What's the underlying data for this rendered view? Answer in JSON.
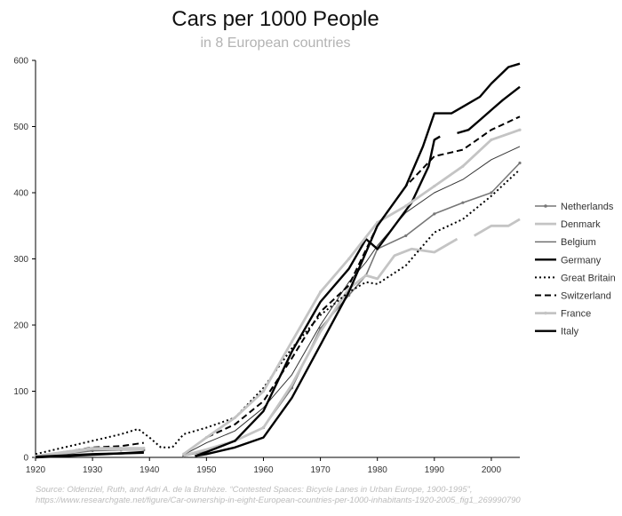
{
  "chart_data": {
    "type": "line",
    "title": "Cars per 1000 People",
    "subtitle": "in 8 European countries",
    "xlabel": "",
    "ylabel": "",
    "xlim": [
      1920,
      2005
    ],
    "ylim": [
      0,
      600
    ],
    "x_ticks": [
      1920,
      1930,
      1940,
      1950,
      1960,
      1970,
      1980,
      1990,
      2000
    ],
    "y_ticks": [
      0,
      100,
      200,
      300,
      400,
      500,
      600
    ],
    "legend_position": "right",
    "source": [
      "Source: Oldenziel, Ruth, and Adri A. de la Bruhèze. “Contested Spaces: Bicycle Lanes in Urban Europe, 1900-1995”,",
      "https://www.researchgate.net/figure/Car-ownership-in-eight-European-countries-per-1000-inhabitants-1920-2005_fig1_269990790"
    ],
    "series": [
      {
        "name": "Netherlands",
        "color": "#777777",
        "width": 1.6,
        "dash": "",
        "marker": true,
        "segments": [
          [
            [
              1920,
              0
            ],
            [
              1925,
              5
            ],
            [
              1930,
              10
            ],
            [
              1935,
              11
            ],
            [
              1939,
              11
            ]
          ],
          [
            [
              1946,
              2
            ],
            [
              1950,
              10
            ],
            [
              1955,
              25
            ],
            [
              1960,
              45
            ],
            [
              1965,
              105
            ],
            [
              1970,
              195
            ],
            [
              1975,
              245
            ],
            [
              1978,
              275
            ],
            [
              1980,
              315
            ],
            [
              1985,
              335
            ],
            [
              1990,
              368
            ],
            [
              1995,
              385
            ],
            [
              2000,
              400
            ],
            [
              2005,
              445
            ]
          ]
        ]
      },
      {
        "name": "Denmark",
        "color": "#c4c4c4",
        "width": 2.8,
        "dash": "",
        "marker": false,
        "segments": [
          [
            [
              1920,
              1
            ],
            [
              1925,
              6
            ],
            [
              1930,
              13
            ],
            [
              1935,
              12
            ],
            [
              1939,
              12
            ]
          ],
          [
            [
              1946,
              3
            ],
            [
              1950,
              12
            ],
            [
              1955,
              25
            ],
            [
              1960,
              45
            ],
            [
              1965,
              110
            ],
            [
              1970,
              190
            ],
            [
              1975,
              255
            ],
            [
              1978,
              275
            ],
            [
              1980,
              270
            ],
            [
              1983,
              305
            ],
            [
              1986,
              315
            ],
            [
              1990,
              310
            ],
            [
              1994,
              330
            ]
          ],
          [
            [
              1997,
              335
            ],
            [
              2000,
              350
            ],
            [
              2003,
              350
            ],
            [
              2005,
              360
            ]
          ]
        ]
      },
      {
        "name": "Belgium",
        "color": "#333333",
        "width": 1.0,
        "dash": "",
        "marker": false,
        "segments": [
          [
            [
              1920,
              1
            ],
            [
              1925,
              8
            ],
            [
              1930,
              15
            ],
            [
              1935,
              13
            ],
            [
              1939,
              14
            ]
          ],
          [
            [
              1946,
              4
            ],
            [
              1950,
              22
            ],
            [
              1955,
              40
            ],
            [
              1960,
              75
            ],
            [
              1965,
              125
            ],
            [
              1970,
              200
            ],
            [
              1975,
              265
            ],
            [
              1978,
              295
            ],
            [
              1980,
              320
            ],
            [
              1985,
              370
            ],
            [
              1990,
              400
            ],
            [
              1995,
              420
            ],
            [
              2000,
              450
            ],
            [
              2005,
              470
            ]
          ]
        ]
      },
      {
        "name": "Germany",
        "color": "#000000",
        "width": 2.4,
        "dash": "",
        "marker": false,
        "segments": [
          [
            [
              1920,
              0
            ],
            [
              1925,
              2
            ],
            [
              1930,
              4
            ],
            [
              1935,
              6
            ],
            [
              1939,
              8
            ]
          ],
          [
            [
              1948,
              2
            ],
            [
              1950,
              8
            ],
            [
              1955,
              25
            ],
            [
              1960,
              70
            ],
            [
              1965,
              160
            ],
            [
              1970,
              235
            ],
            [
              1975,
              285
            ],
            [
              1978,
              330
            ],
            [
              1980,
              315
            ],
            [
              1983,
              350
            ],
            [
              1986,
              385
            ],
            [
              1989,
              440
            ],
            [
              1990,
              480
            ],
            [
              1991,
              485
            ]
          ],
          [
            [
              1994,
              490
            ],
            [
              1996,
              495
            ],
            [
              1998,
              510
            ],
            [
              2000,
              525
            ],
            [
              2002,
              540
            ],
            [
              2005,
              560
            ]
          ]
        ]
      },
      {
        "name": "Great Britain",
        "color": "#000000",
        "width": 2.0,
        "dash": "2,3",
        "marker": false,
        "segments": [
          [
            [
              1920,
              5
            ],
            [
              1925,
              15
            ],
            [
              1930,
              25
            ],
            [
              1935,
              35
            ],
            [
              1938,
              43
            ],
            [
              1940,
              30
            ],
            [
              1942,
              15
            ],
            [
              1944,
              15
            ],
            [
              1946,
              35
            ],
            [
              1950,
              45
            ],
            [
              1955,
              60
            ],
            [
              1960,
              105
            ],
            [
              1965,
              165
            ],
            [
              1970,
              215
            ],
            [
              1975,
              250
            ],
            [
              1978,
              265
            ],
            [
              1980,
              262
            ],
            [
              1985,
              290
            ],
            [
              1990,
              340
            ],
            [
              1995,
              360
            ],
            [
              2000,
              395
            ],
            [
              2005,
              435
            ]
          ]
        ]
      },
      {
        "name": "Switzerland",
        "color": "#000000",
        "width": 2.0,
        "dash": "7,4",
        "marker": false,
        "segments": [
          [
            [
              1920,
              2
            ],
            [
              1925,
              8
            ],
            [
              1930,
              15
            ],
            [
              1935,
              17
            ],
            [
              1939,
              22
            ]
          ],
          [
            [
              1946,
              5
            ],
            [
              1950,
              30
            ],
            [
              1955,
              50
            ],
            [
              1960,
              85
            ],
            [
              1965,
              150
            ],
            [
              1970,
              220
            ],
            [
              1975,
              260
            ],
            [
              1980,
              350
            ],
            [
              1985,
              410
            ],
            [
              1990,
              455
            ],
            [
              1995,
              465
            ],
            [
              2000,
              495
            ],
            [
              2005,
              515
            ]
          ]
        ]
      },
      {
        "name": "France",
        "color": "#c4c4c4",
        "width": 2.8,
        "dash": "",
        "marker": true,
        "segments": [
          [
            [
              1920,
              2
            ],
            [
              1925,
              8
            ],
            [
              1930,
              14
            ],
            [
              1935,
              14
            ],
            [
              1939,
              14
            ]
          ],
          [
            [
              1946,
              5
            ],
            [
              1950,
              30
            ],
            [
              1955,
              60
            ],
            [
              1960,
              100
            ],
            [
              1965,
              175
            ],
            [
              1970,
              250
            ],
            [
              1975,
              300
            ],
            [
              1980,
              355
            ],
            [
              1985,
              380
            ],
            [
              1990,
              410
            ],
            [
              1995,
              440
            ],
            [
              2000,
              480
            ],
            [
              2005,
              495
            ]
          ]
        ]
      },
      {
        "name": "Italy",
        "color": "#000000",
        "width": 2.4,
        "dash": "",
        "marker": false,
        "segments": [
          [
            [
              1920,
              1
            ],
            [
              1925,
              3
            ],
            [
              1930,
              5
            ],
            [
              1935,
              6
            ],
            [
              1939,
              7
            ]
          ],
          [
            [
              1948,
              2
            ],
            [
              1950,
              5
            ],
            [
              1955,
              15
            ],
            [
              1960,
              30
            ],
            [
              1965,
              90
            ],
            [
              1970,
              170
            ],
            [
              1975,
              250
            ],
            [
              1980,
              350
            ],
            [
              1985,
              410
            ],
            [
              1988,
              470
            ],
            [
              1990,
              520
            ],
            [
              1993,
              520
            ],
            [
              1995,
              530
            ],
            [
              1998,
              545
            ],
            [
              2000,
              565
            ],
            [
              2003,
              590
            ],
            [
              2005,
              595
            ]
          ]
        ]
      }
    ]
  }
}
